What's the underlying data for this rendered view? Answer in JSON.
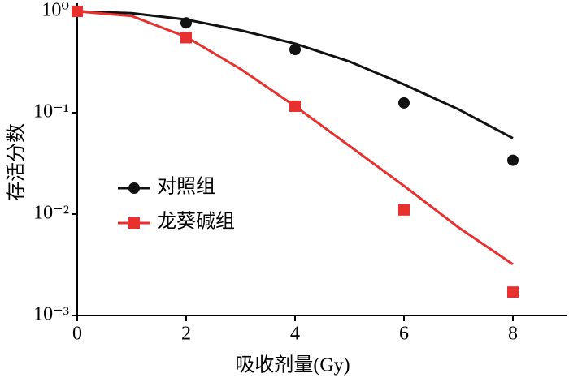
{
  "chart_data": {
    "type": "scatter-fit",
    "x_label": "吸收剂量(Gy)",
    "y_label": "存活分数",
    "xlim": [
      0,
      9
    ],
    "xticks": [
      0,
      2,
      4,
      6,
      8
    ],
    "ylim": [
      0.001,
      1
    ],
    "log_y": true,
    "yticks": [
      {
        "value": 1,
        "label": "10⁰"
      },
      {
        "value": 0.1,
        "label": "10⁻¹"
      },
      {
        "value": 0.01,
        "label": "10⁻²"
      },
      {
        "value": 0.001,
        "label": "10⁻³"
      }
    ],
    "legend": "left",
    "series": [
      {
        "name": "对照组",
        "color": "#111111",
        "marker": "circle",
        "x": [
          0,
          2,
          4,
          6,
          8
        ],
        "values": [
          1,
          0.77,
          0.42,
          0.125,
          0.034
        ],
        "fit_x": [
          0,
          1,
          2,
          3,
          4,
          5,
          6,
          7,
          8
        ],
        "fit_values": [
          1,
          0.96,
          0.83,
          0.65,
          0.48,
          0.32,
          0.19,
          0.108,
          0.056
        ]
      },
      {
        "name": "龙葵碱组",
        "color": "#e8312f",
        "marker": "square",
        "x": [
          0,
          2,
          4,
          6,
          8
        ],
        "values": [
          1,
          0.55,
          0.116,
          0.011,
          0.0017
        ],
        "fit_x": [
          0,
          1,
          2,
          3,
          4,
          5,
          6,
          7,
          8
        ],
        "fit_values": [
          1,
          0.9,
          0.56,
          0.27,
          0.116,
          0.047,
          0.019,
          0.0074,
          0.0032
        ]
      }
    ]
  }
}
